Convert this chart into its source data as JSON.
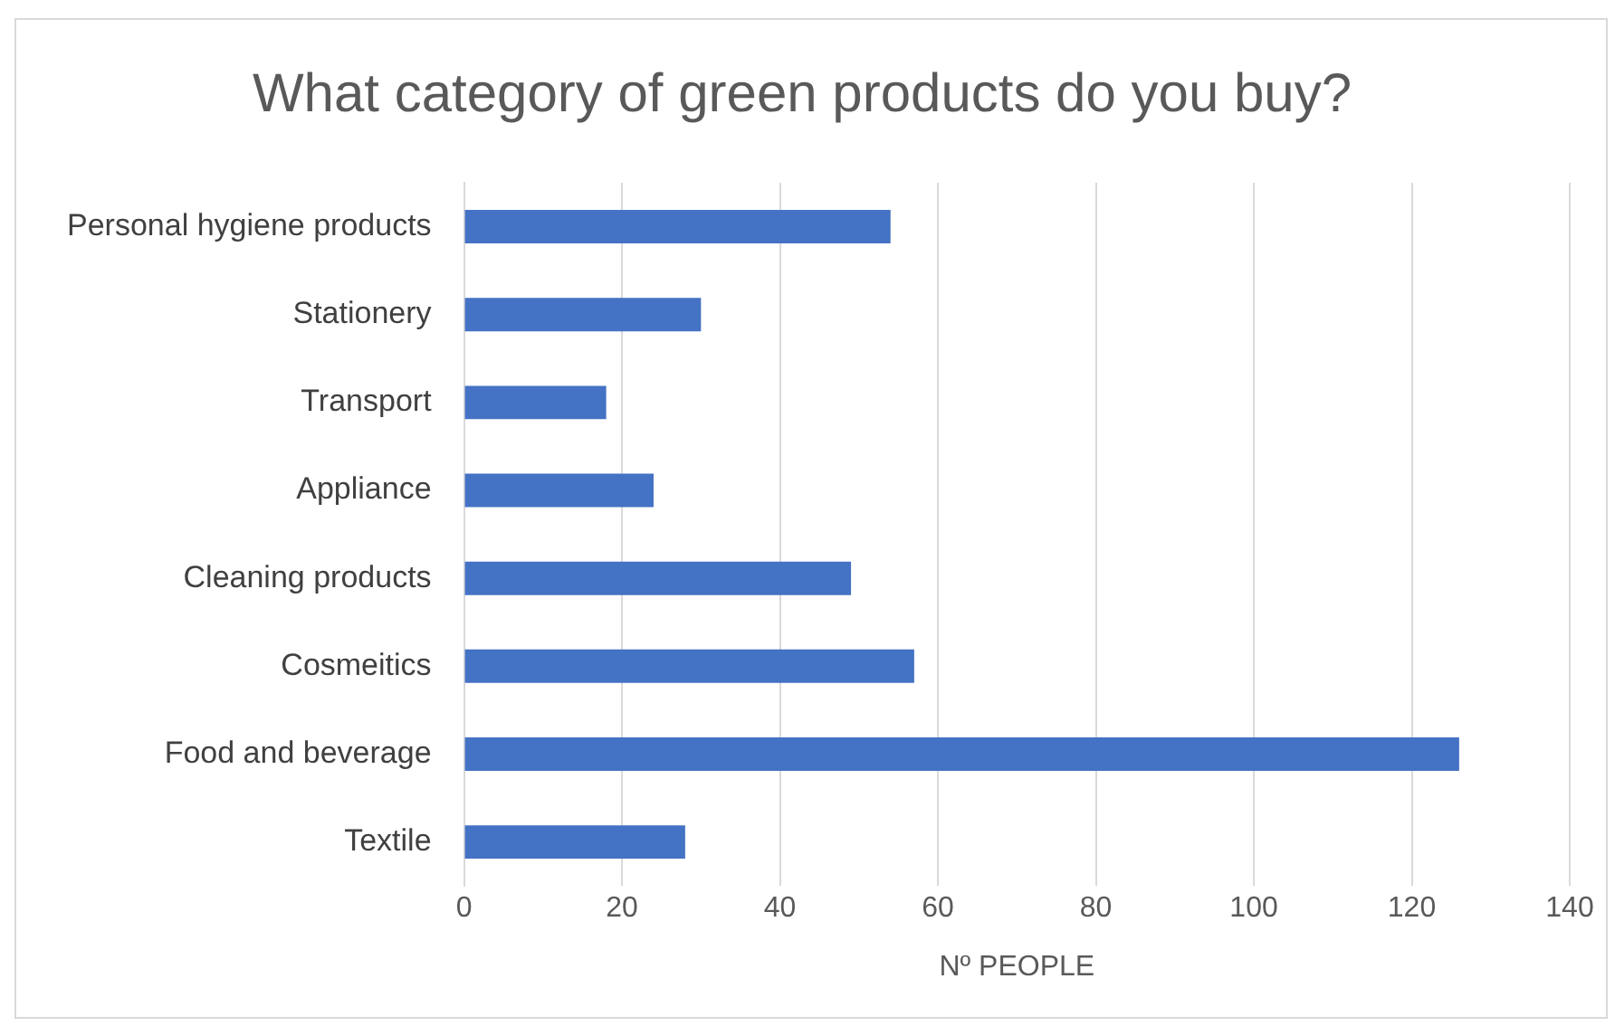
{
  "chart_data": {
    "type": "bar",
    "orientation": "horizontal",
    "title": "What category of green products do you buy?",
    "xlabel": "Nº PEOPLE",
    "categories": [
      "Personal hygiene products",
      "Stationery",
      "Transport",
      "Appliance",
      "Cleaning products",
      "Cosmeitics",
      "Food and beverage",
      "Textile"
    ],
    "values": [
      54,
      30,
      18,
      24,
      49,
      57,
      126,
      28
    ],
    "color": "#4472c4",
    "xlim": [
      0,
      140
    ],
    "xticks": [
      0,
      20,
      40,
      60,
      80,
      100,
      120,
      140
    ],
    "grid": "x",
    "legend": false
  }
}
